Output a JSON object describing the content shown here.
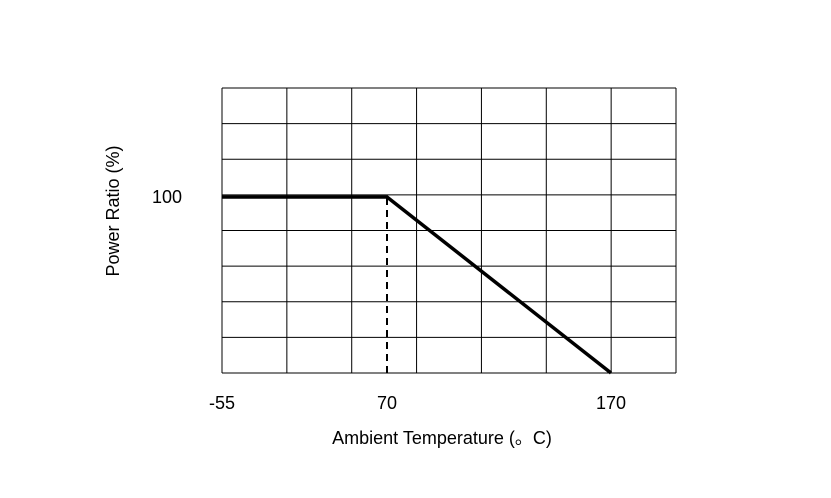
{
  "chart_data": {
    "type": "line",
    "title": "",
    "xlabel": "Ambient Temperature (。C)",
    "ylabel": "Power Ratio (%)",
    "x_tick_labels": [
      {
        "value": -55,
        "label": "-55"
      },
      {
        "value": 70,
        "label": "70"
      },
      {
        "value": 170,
        "label": "170"
      }
    ],
    "y_tick_labels": [
      {
        "value": 100,
        "label": "100"
      }
    ],
    "xlim": [
      -55,
      200
    ],
    "ylim": [
      0,
      150
    ],
    "grid": true,
    "grid_columns": 7,
    "grid_rows": 8,
    "series": [
      {
        "style": "solid",
        "color": "#000000",
        "x": [
          -55,
          70,
          170
        ],
        "y": [
          100,
          100,
          0
        ]
      }
    ],
    "reference_lines": [
      {
        "style": "dashed",
        "x": [
          70,
          70
        ],
        "y": [
          0,
          100
        ]
      }
    ]
  }
}
